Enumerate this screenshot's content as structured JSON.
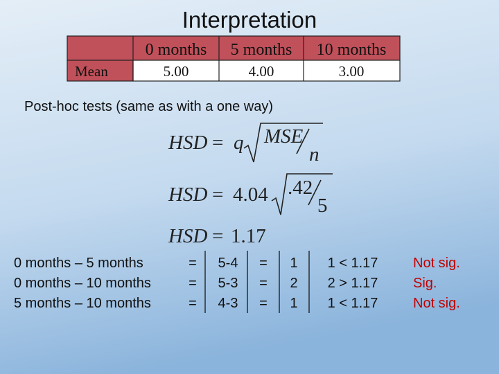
{
  "title": "Interpretation",
  "table": {
    "header": [
      "0 months",
      "5 months",
      "10 months"
    ],
    "rows": [
      [
        "Mean",
        "5.00",
        "4.00",
        "3.00"
      ]
    ]
  },
  "subtitle": "Post-hoc tests (same as with a one way)",
  "formulas": [
    {
      "lhs": "HSD",
      "eq": "=",
      "coef": "q",
      "num": "MSE",
      "den": "n"
    },
    {
      "lhs": "HSD",
      "eq": "=",
      "coef": "4.04",
      "num": ".42",
      "den": "5"
    },
    {
      "lhs": "HSD",
      "eq": "=",
      "value": "1.17"
    }
  ],
  "comparisons": [
    {
      "pair": "0 months – 5 months",
      "eq1": "=",
      "diff": "5-4",
      "eq2": "=",
      "result": "1",
      "test": "1 < 1.17",
      "verdict": "Not sig."
    },
    {
      "pair": "0 months – 10 months",
      "eq1": "=",
      "diff": "5-3",
      "eq2": "=",
      "result": "2",
      "test": "2 > 1.17",
      "verdict": "Sig."
    },
    {
      "pair": "5 months – 10 months",
      "eq1": "=",
      "diff": "4-3",
      "eq2": "=",
      "result": "1",
      "test": "1 < 1.17",
      "verdict": "Not sig."
    }
  ]
}
